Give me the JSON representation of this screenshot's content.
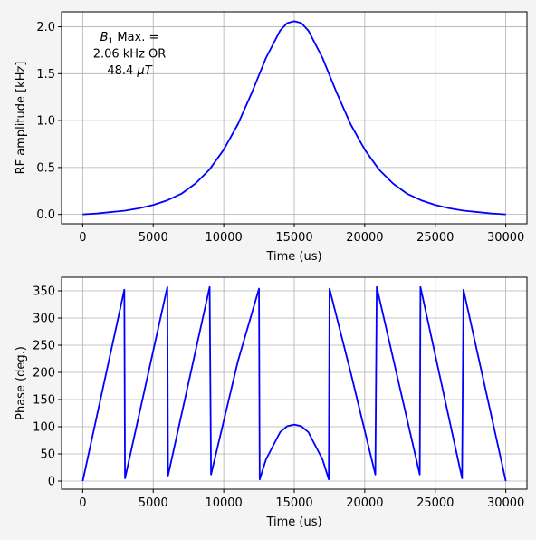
{
  "chart_data": [
    {
      "type": "line",
      "xlabel": "Time (us)",
      "ylabel": "RF amplitude [kHz]",
      "xlim": [
        -1500,
        31500
      ],
      "ylim": [
        -0.1,
        2.16
      ],
      "xticks": [
        0,
        5000,
        10000,
        15000,
        20000,
        25000,
        30000
      ],
      "yticks": [
        0.0,
        0.5,
        1.0,
        1.5,
        2.0
      ],
      "xtick_labels": [
        "0",
        "5000",
        "10000",
        "15000",
        "20000",
        "25000",
        "30000"
      ],
      "ytick_labels": [
        "0.0",
        "0.5",
        "1.0",
        "1.5",
        "2.0"
      ],
      "grid": true,
      "line_color": "#0000ff",
      "annotation_lines": [
        "B1 Max. =",
        "2.06 kHz OR",
        "48.4 μT"
      ],
      "series": [
        {
          "x": [
            0,
            1000,
            2000,
            3000,
            4000,
            5000,
            6000,
            7000,
            8000,
            9000,
            10000,
            11000,
            12000,
            13000,
            14000,
            14500,
            15000,
            15500,
            16000,
            17000,
            18000,
            19000,
            20000,
            21000,
            22000,
            23000,
            24000,
            25000,
            26000,
            27000,
            28000,
            29000,
            30000
          ],
          "y": [
            0.0,
            0.01,
            0.025,
            0.04,
            0.065,
            0.1,
            0.15,
            0.22,
            0.33,
            0.48,
            0.69,
            0.96,
            1.3,
            1.67,
            1.96,
            2.04,
            2.06,
            2.04,
            1.96,
            1.67,
            1.3,
            0.96,
            0.69,
            0.48,
            0.33,
            0.22,
            0.15,
            0.1,
            0.065,
            0.04,
            0.025,
            0.01,
            0.0
          ]
        }
      ]
    },
    {
      "type": "line",
      "xlabel": "Time (us)",
      "ylabel": "Phase (deg.)",
      "xlim": [
        -1500,
        31500
      ],
      "ylim": [
        -15,
        375
      ],
      "xticks": [
        0,
        5000,
        10000,
        15000,
        20000,
        25000,
        30000
      ],
      "yticks": [
        0,
        50,
        100,
        150,
        200,
        250,
        300,
        350
      ],
      "xtick_labels": [
        "0",
        "5000",
        "10000",
        "15000",
        "20000",
        "25000",
        "30000"
      ],
      "ytick_labels": [
        "0",
        "50",
        "100",
        "150",
        "200",
        "250",
        "300",
        "350"
      ],
      "grid": true,
      "line_color": "#0000ff",
      "series": [
        {
          "x": [
            0,
            2950,
            3000,
            6000,
            6050,
            9000,
            9100,
            11000,
            12500,
            12550,
            13000,
            14000,
            14500,
            15000,
            15500,
            16000,
            17000,
            17450,
            17500,
            19000,
            20750,
            20850,
            23900,
            23950,
            26900,
            27000,
            30000
          ],
          "y": [
            0,
            352,
            5,
            357,
            10,
            357,
            12,
            220,
            354,
            3,
            40,
            90,
            101,
            104,
            101,
            90,
            40,
            3,
            354,
            200,
            12,
            357,
            12,
            357,
            5,
            352,
            0
          ]
        }
      ]
    }
  ]
}
